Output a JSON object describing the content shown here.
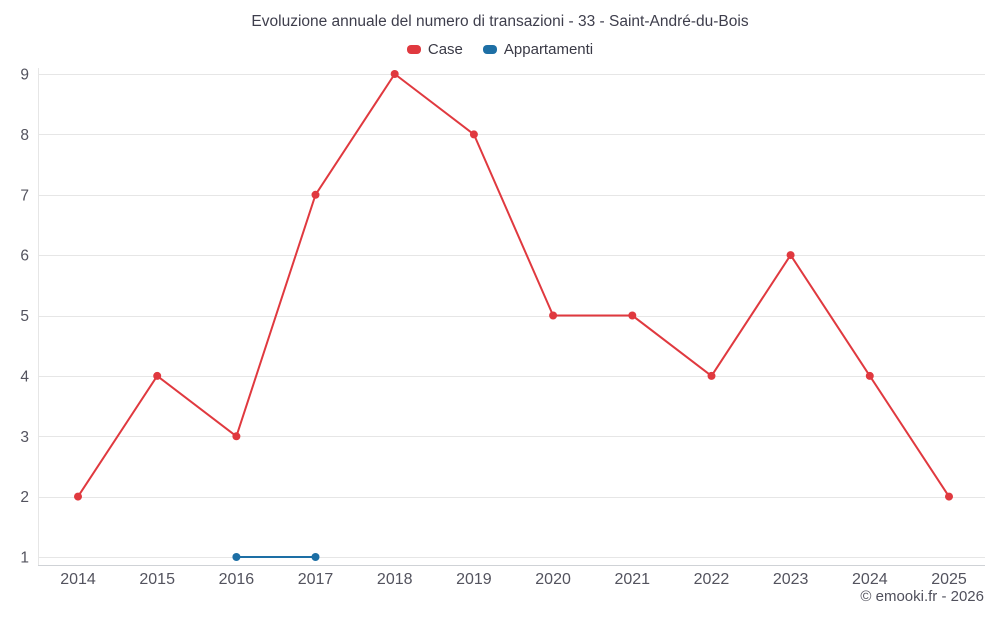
{
  "footer": {
    "credit": "© emooki.fr - 2026"
  },
  "chart_data": {
    "type": "line",
    "title": "Evoluzione annuale del numero di transazioni - 33 - Saint-André-du-Bois",
    "x": [
      2014,
      2015,
      2016,
      2017,
      2018,
      2019,
      2020,
      2021,
      2022,
      2023,
      2024,
      2025
    ],
    "series": [
      {
        "name": "Case",
        "color": "#e0393f",
        "points": [
          [
            2014,
            2
          ],
          [
            2015,
            4
          ],
          [
            2016,
            3
          ],
          [
            2017,
            7
          ],
          [
            2018,
            9
          ],
          [
            2019,
            8
          ],
          [
            2020,
            5
          ],
          [
            2021,
            5
          ],
          [
            2022,
            4
          ],
          [
            2023,
            6
          ],
          [
            2024,
            4
          ],
          [
            2025,
            2
          ]
        ]
      },
      {
        "name": "Appartamenti",
        "color": "#1d6fa5",
        "points": [
          [
            2016,
            1
          ],
          [
            2017,
            1
          ]
        ]
      }
    ],
    "ylim": [
      1,
      9
    ],
    "y_ticks": [
      1,
      2,
      3,
      4,
      5,
      6,
      7,
      8,
      9
    ],
    "xlabel": "",
    "ylabel": "",
    "grid": true,
    "legend_position": "top"
  }
}
